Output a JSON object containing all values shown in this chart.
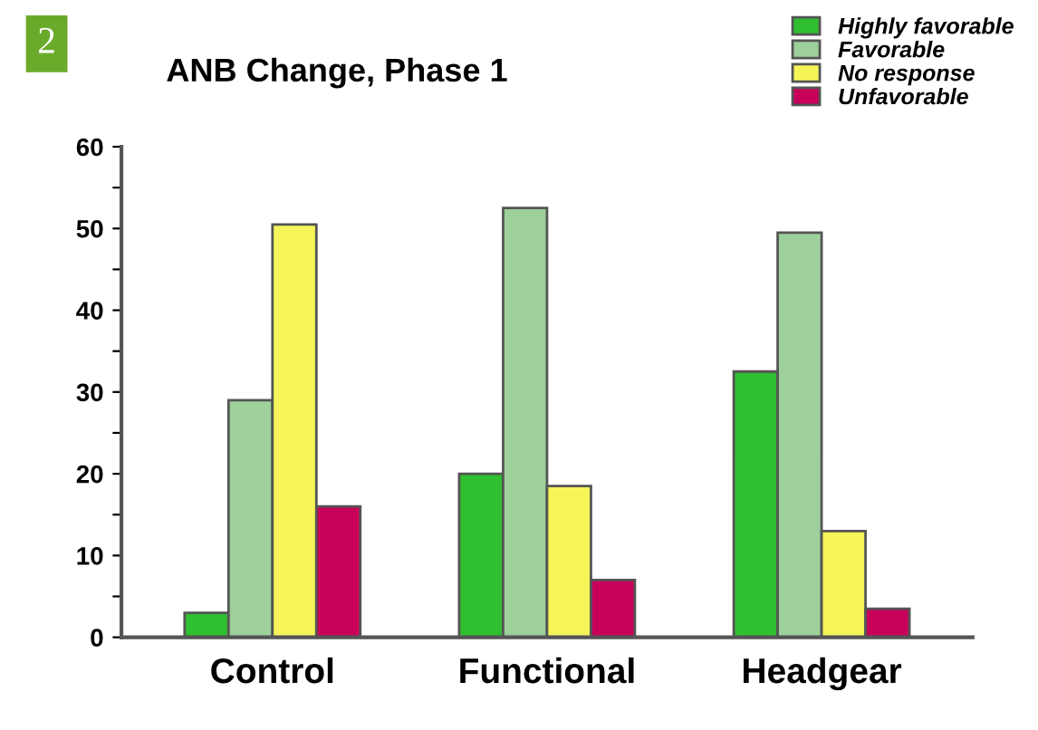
{
  "chart_data": {
    "type": "bar",
    "title": "ANB Change, Phase 1",
    "annotations": [
      "2"
    ],
    "categories": [
      "Control",
      "Functional",
      "Headgear"
    ],
    "series": [
      {
        "name": "Highly favorable",
        "color": "#2fbf2f",
        "values": [
          3,
          20,
          32.5
        ]
      },
      {
        "name": "Favorable",
        "color": "#9dd09a",
        "values": [
          29,
          52.5,
          49.5
        ]
      },
      {
        "name": "No response",
        "color": "#f5f55a",
        "values": [
          50.5,
          18.5,
          13
        ]
      },
      {
        "name": "Unfavorable",
        "color": "#c8005a",
        "values": [
          16,
          7,
          3.5
        ]
      }
    ],
    "ylim": [
      0,
      60
    ],
    "yticks": [
      0,
      {
        "value": 5,
        "label": null
      },
      10,
      {
        "value": 15,
        "label": null
      },
      20,
      {
        "value": 25,
        "label": null
      },
      30,
      {
        "value": 35,
        "label": null
      },
      40,
      {
        "value": 45,
        "label": null
      },
      50,
      {
        "value": 55,
        "label": null
      },
      60
    ],
    "grid": false,
    "legend": "top right"
  }
}
